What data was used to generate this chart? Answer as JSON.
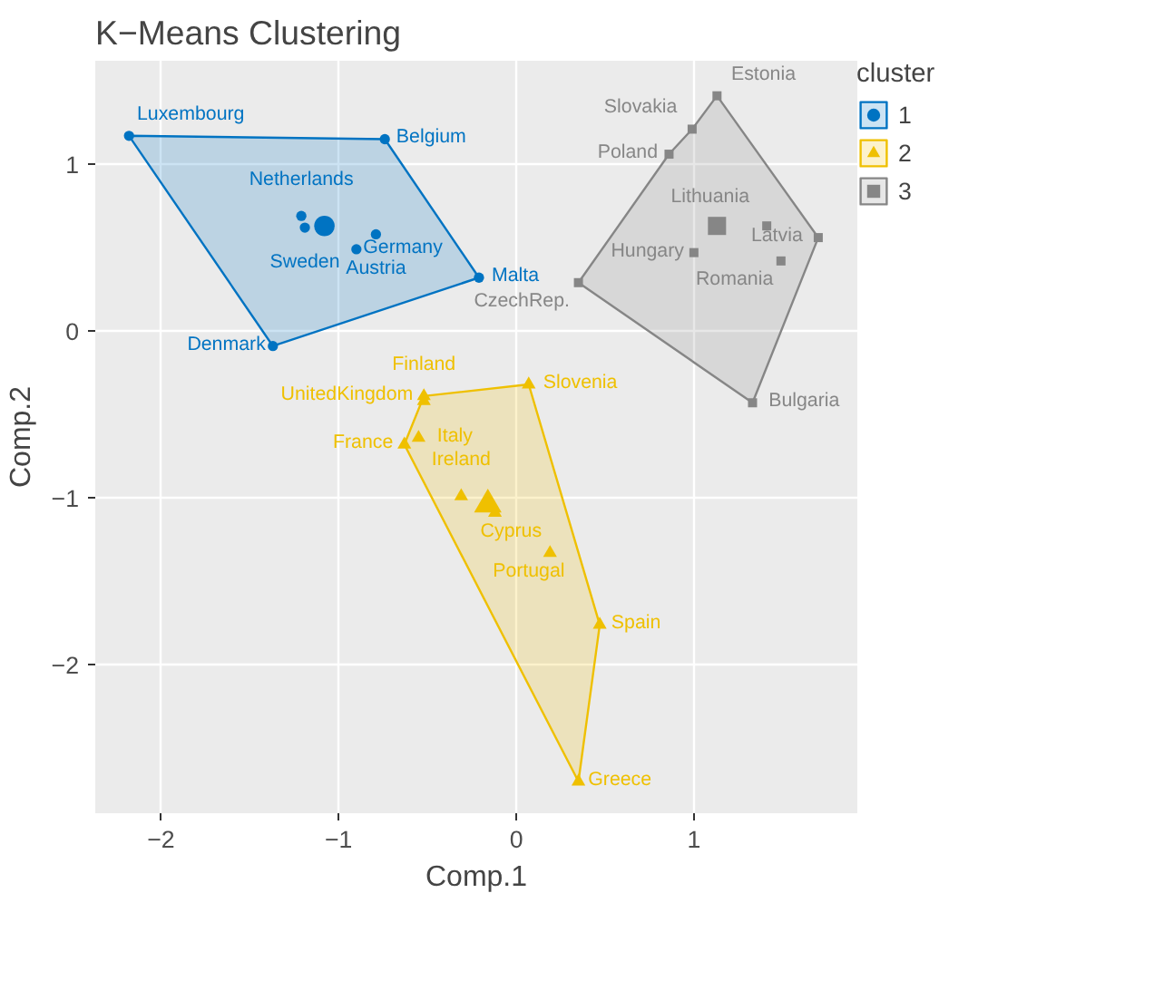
{
  "chart_data": {
    "type": "scatter",
    "title": "K−Means Clustering",
    "xlabel": "Comp.1",
    "ylabel": "Comp.2",
    "legend_title": "cluster",
    "xlim": [
      -2.37,
      1.92
    ],
    "ylim": [
      -2.89,
      1.62
    ],
    "xticks": [
      {
        "value": -2,
        "label": "−2"
      },
      {
        "value": -1,
        "label": "−1"
      },
      0,
      1
    ],
    "yticks": [
      {
        "value": -2,
        "label": "−2"
      },
      {
        "value": -1,
        "label": "−1"
      },
      0,
      1
    ],
    "grid": true,
    "legend": "right",
    "series": [
      {
        "type": "area",
        "color": "#0073c2",
        "x": [
          -2.18,
          -0.74,
          -0.21,
          -1.37
        ],
        "values": [
          1.17,
          1.15,
          0.32,
          -0.09
        ]
      },
      {
        "type": "area",
        "color": "#efc000",
        "x": [
          -0.52,
          0.07,
          0.47,
          0.35,
          -0.63
        ],
        "values": [
          -0.39,
          -0.32,
          -1.76,
          -2.7,
          -0.68
        ]
      },
      {
        "type": "area",
        "color": "#868686",
        "x": [
          1.13,
          1.7,
          1.33,
          0.35,
          0.86,
          0.99
        ],
        "values": [
          1.41,
          0.56,
          -0.43,
          0.29,
          1.06,
          1.21
        ]
      },
      {
        "name": "1",
        "type": "bubble",
        "marker": "circle",
        "color": "#0073c2",
        "x": [
          -2.18,
          -0.74,
          -1.21,
          -1.19,
          -1.08,
          -0.79,
          -0.9,
          -0.21,
          -1.37
        ],
        "values": [
          1.17,
          1.15,
          0.69,
          0.62,
          0.63,
          0.58,
          0.49,
          0.32,
          -0.09
        ],
        "sizes": [
          0.25,
          0.25,
          0.25,
          0.25,
          1,
          0.25,
          0.25,
          0.25,
          0.25
        ]
      },
      {
        "name": "2",
        "type": "bubble",
        "marker": "triangle",
        "color": "#efc000",
        "x": [
          0.07,
          -0.52,
          -0.52,
          -0.55,
          -0.63,
          -0.31,
          -0.12,
          -0.16,
          0.19,
          0.47,
          0.35
        ],
        "values": [
          -0.32,
          -0.39,
          -0.42,
          -0.64,
          -0.68,
          -0.99,
          -1.09,
          -1.04,
          -1.33,
          -1.76,
          -2.7
        ],
        "sizes": [
          0.25,
          0.25,
          0.25,
          0.25,
          0.25,
          0.25,
          0.25,
          1,
          0.25,
          0.25,
          0.25
        ]
      },
      {
        "name": "3",
        "type": "bubble",
        "marker": "square",
        "color": "#868686",
        "x": [
          1.13,
          0.99,
          0.86,
          1.13,
          1.41,
          1.7,
          1.0,
          1.49,
          0.35,
          1.33
        ],
        "values": [
          1.41,
          1.21,
          1.06,
          0.63,
          0.63,
          0.56,
          0.47,
          0.42,
          0.29,
          -0.43
        ],
        "sizes": [
          0.25,
          0.25,
          0.25,
          1,
          0.25,
          0.25,
          0.25,
          0.25,
          0.25,
          0.25
        ]
      }
    ],
    "annotations": [
      {
        "text": "Luxembourg",
        "x": -2.18,
        "y": 1.17
      },
      {
        "text": "Belgium",
        "x": -0.74,
        "y": 1.15
      },
      {
        "text": "Netherlands",
        "x": -1.21,
        "y": 0.69
      },
      {
        "text": "Sweden",
        "x": -1.19,
        "y": 0.62
      },
      {
        "text": "Austria",
        "x": -0.79,
        "y": 0.58
      },
      {
        "text": "Germany",
        "x": -0.9,
        "y": 0.49
      },
      {
        "text": "Malta",
        "x": -0.21,
        "y": 0.32
      },
      {
        "text": "Denmark",
        "x": -1.37,
        "y": -0.09
      },
      {
        "text": "Slovenia",
        "x": 0.07,
        "y": -0.32
      },
      {
        "text": "UnitedKingdom",
        "x": -0.52,
        "y": -0.39
      },
      {
        "text": "Finland",
        "x": -0.52,
        "y": -0.42
      },
      {
        "text": "Italy",
        "x": -0.55,
        "y": -0.64
      },
      {
        "text": "France",
        "x": -0.63,
        "y": -0.68
      },
      {
        "text": "Ireland",
        "x": -0.31,
        "y": -0.99
      },
      {
        "text": "Cyprus",
        "x": -0.12,
        "y": -1.09
      },
      {
        "text": "Portugal",
        "x": 0.19,
        "y": -1.33
      },
      {
        "text": "Spain",
        "x": 0.47,
        "y": -1.76
      },
      {
        "text": "Greece",
        "x": 0.35,
        "y": -2.7
      },
      {
        "text": "Estonia",
        "x": 1.13,
        "y": 1.41
      },
      {
        "text": "Slovakia",
        "x": 0.99,
        "y": 1.21
      },
      {
        "text": "Poland",
        "x": 0.86,
        "y": 1.06
      },
      {
        "text": "Lithuania",
        "x": 1.41,
        "y": 0.63
      },
      {
        "text": "Latvia",
        "x": 1.7,
        "y": 0.56
      },
      {
        "text": "Hungary",
        "x": 1.0,
        "y": 0.47
      },
      {
        "text": "Romania",
        "x": 1.49,
        "y": 0.42
      },
      {
        "text": "CzechRep.",
        "x": 0.35,
        "y": 0.29
      },
      {
        "text": "Bulgaria",
        "x": 1.33,
        "y": -0.43
      }
    ]
  }
}
